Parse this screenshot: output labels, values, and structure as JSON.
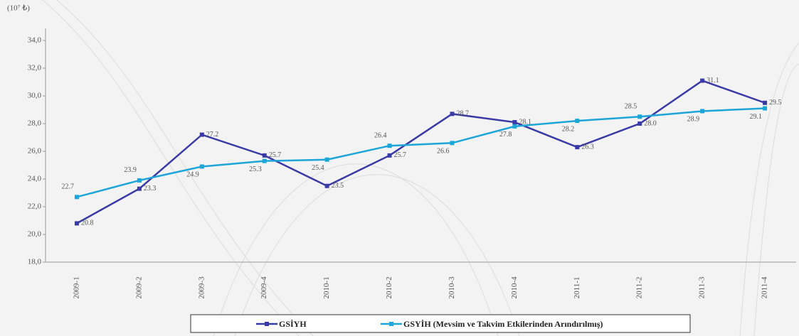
{
  "chart_data": {
    "type": "line",
    "y_label": "(10⁷ ₺)",
    "categories": [
      "2009-1",
      "2009-2",
      "2009-3",
      "2009-4",
      "2010-1",
      "2010-2",
      "2010-3",
      "2010-4",
      "2011-1",
      "2011-2",
      "2011-3",
      "2011-4"
    ],
    "series": [
      {
        "name": "GSİYH",
        "color": "#3a3aa6",
        "values": [
          20.8,
          23.3,
          27.2,
          25.7,
          23.5,
          25.7,
          28.7,
          28.1,
          26.3,
          28.0,
          31.1,
          29.5
        ],
        "value_labels": [
          "20.8",
          "23.3",
          "27.2",
          "25.7",
          "23.5",
          "25.7",
          "28.7",
          "28.1",
          "26.3",
          "28.0",
          "31.1",
          "29.5"
        ]
      },
      {
        "name": "GSYİH (Mevsim ve Takvim Etkilerinden Arındırılmış)",
        "color": "#1ea5d8",
        "values": [
          22.7,
          23.9,
          24.9,
          25.3,
          25.4,
          26.4,
          26.6,
          27.8,
          28.2,
          28.5,
          28.9,
          29.1
        ],
        "value_labels": [
          "22.7",
          "23.9",
          "24.9",
          "25.3",
          "25.4",
          "26.4",
          "26.6",
          "27.8",
          "28.2",
          "28.5",
          "28.9",
          "29.1"
        ]
      }
    ],
    "ylim": [
      18,
      35
    ],
    "yticks": [
      {
        "value": 18,
        "label": "18,0"
      },
      {
        "value": 20,
        "label": "20,0"
      },
      {
        "value": 22,
        "label": "22,0"
      },
      {
        "value": 24,
        "label": "24,0"
      },
      {
        "value": 26,
        "label": "26,0"
      },
      {
        "value": 28,
        "label": "28,0"
      },
      {
        "value": 30,
        "label": "30,0"
      },
      {
        "value": 32,
        "label": "32,0"
      },
      {
        "value": 34,
        "label": "34,0"
      }
    ]
  }
}
